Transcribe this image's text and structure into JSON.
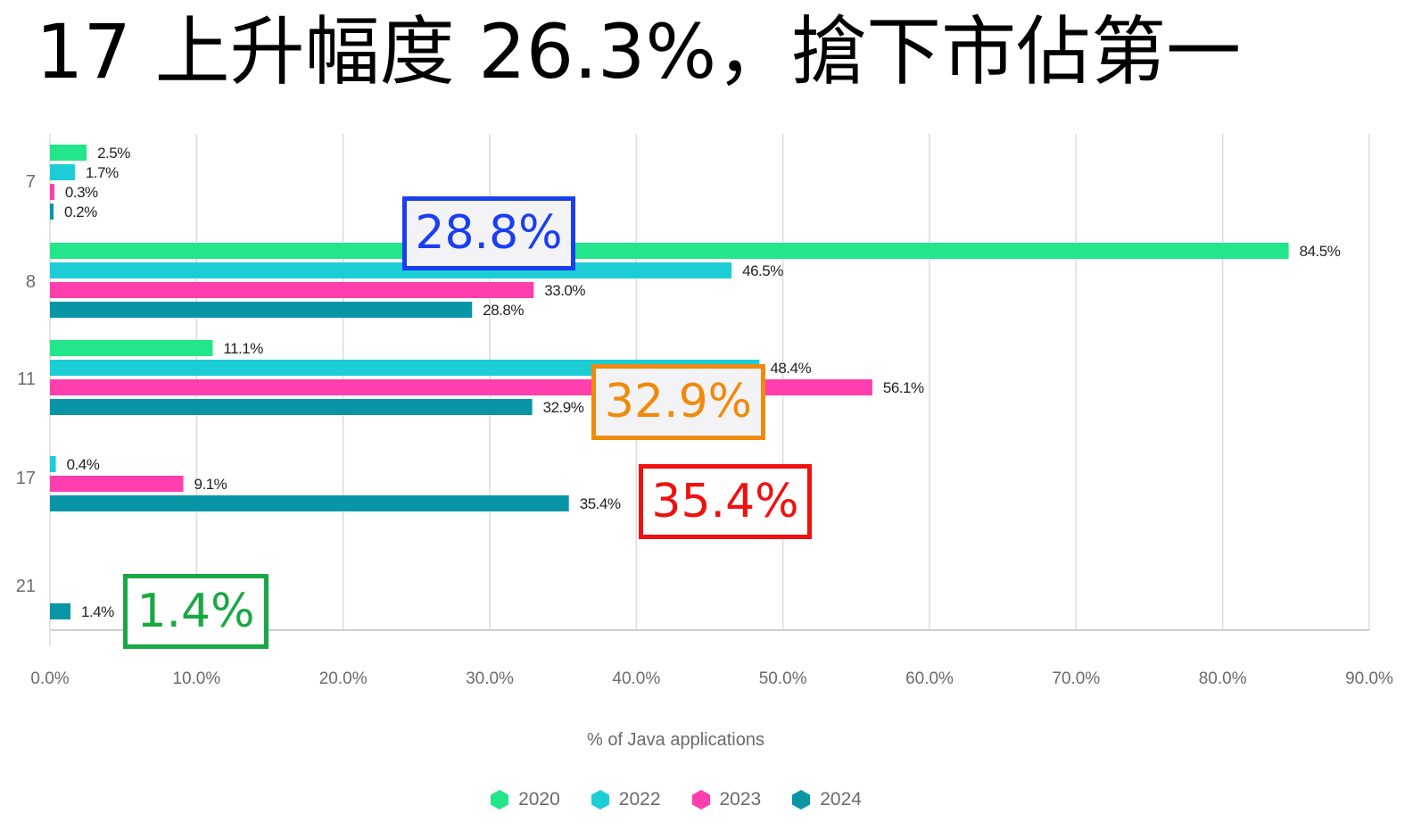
{
  "title": "17 上升幅度 26.3%，搶下市佔第一",
  "chart_data": {
    "type": "bar",
    "orientation": "horizontal",
    "categories": [
      "7",
      "8",
      "11",
      "17",
      "21"
    ],
    "series": [
      {
        "name": "2020",
        "color": "#23e58a",
        "values": [
          2.5,
          84.5,
          11.1,
          null,
          null
        ],
        "labels": [
          "2.5%",
          "84.5%",
          "11.1%",
          null,
          null
        ]
      },
      {
        "name": "2022",
        "color": "#1ccdd6",
        "values": [
          1.7,
          46.5,
          48.4,
          0.4,
          null
        ],
        "labels": [
          "1.7%",
          "46.5%",
          "48.4%",
          "0.4%",
          null
        ]
      },
      {
        "name": "2023",
        "color": "#ff3fad",
        "values": [
          0.3,
          33.0,
          56.1,
          9.1,
          null
        ],
        "labels": [
          "0.3%",
          "33.0%",
          "56.1%",
          "9.1%",
          null
        ]
      },
      {
        "name": "2024",
        "color": "#0896a6",
        "values": [
          0.2,
          28.8,
          32.9,
          35.4,
          1.4
        ],
        "labels": [
          "0.2%",
          "28.8%",
          "32.9%",
          "35.4%",
          "1.4%"
        ]
      }
    ],
    "xlabel": "% of Java applications",
    "xlim": [
      0,
      90
    ],
    "xticks": [
      "0.0%",
      "10.0%",
      "20.0%",
      "30.0%",
      "40.0%",
      "50.0%",
      "60.0%",
      "70.0%",
      "80.0%",
      "90.0%"
    ],
    "grid": true,
    "legend": "bottom"
  },
  "callouts": [
    {
      "text": "28.8%",
      "color": "#1a3ff0"
    },
    {
      "text": "32.9%",
      "color": "#f08a0c"
    },
    {
      "text": "35.4%",
      "color": "#f01010"
    },
    {
      "text": "1.4%",
      "color": "#18a844"
    }
  ]
}
